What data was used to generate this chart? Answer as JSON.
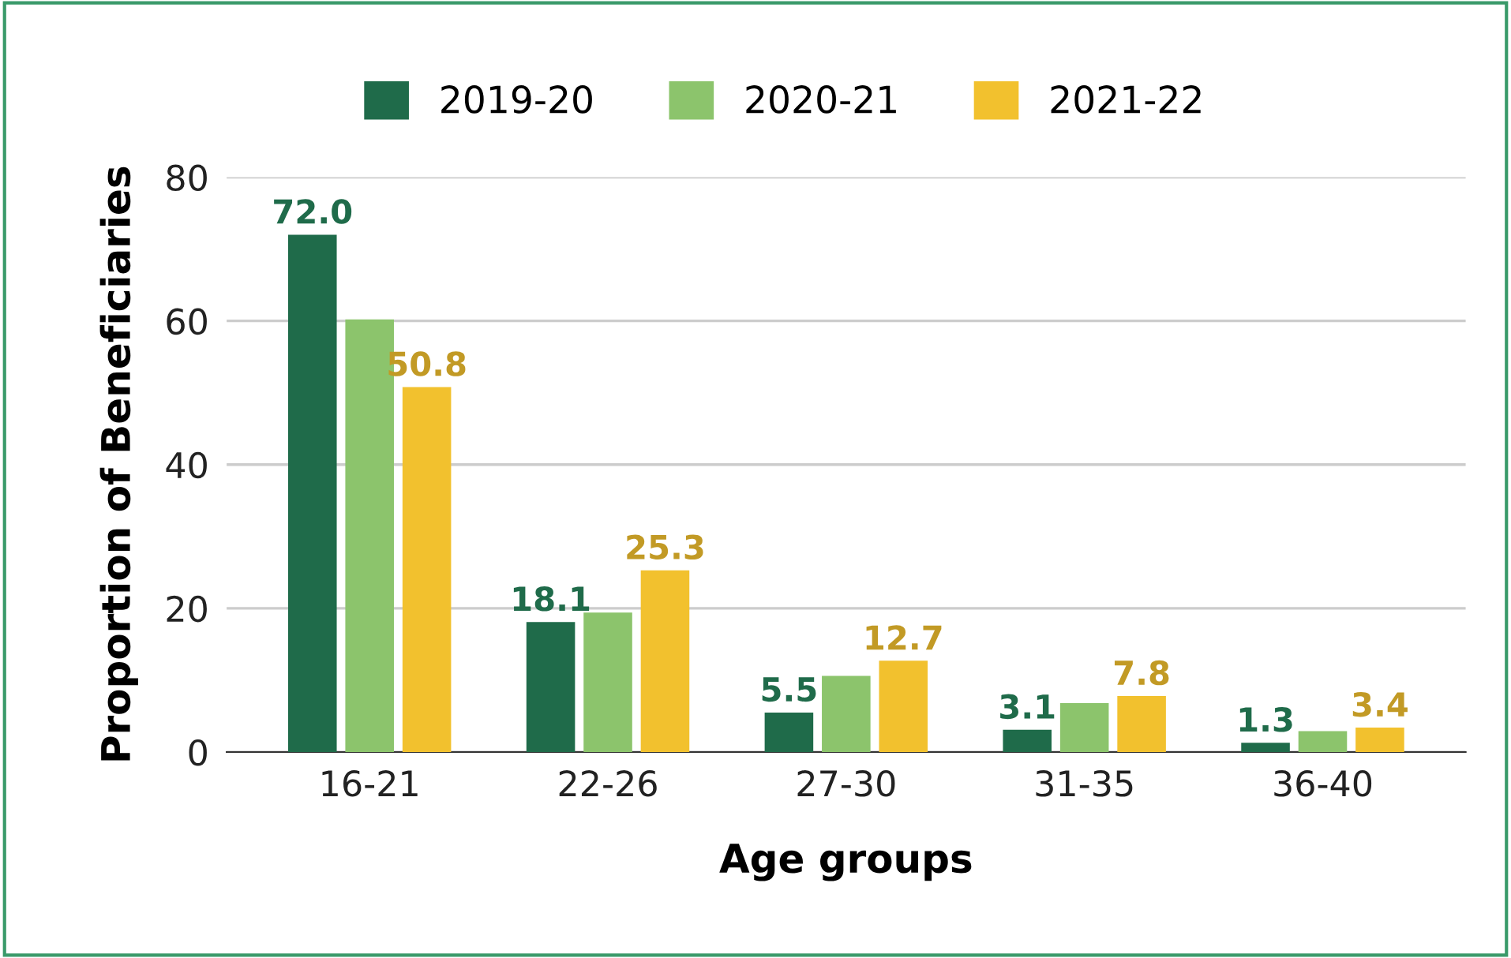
{
  "chart_data": {
    "type": "bar",
    "xlabel": "Age groups",
    "ylabel": "Proportion of Beneficiaries",
    "categories": [
      "16-21",
      "22-26",
      "27-30",
      "31-35",
      "36-40"
    ],
    "series": [
      {
        "name": "2019-20",
        "color": "#1f6b4a",
        "values": [
          72.0,
          18.1,
          5.5,
          3.1,
          1.3
        ],
        "value_labels": [
          "72.0",
          "18.1",
          "5.5",
          "3.1",
          "1.3"
        ]
      },
      {
        "name": "2020-21",
        "color": "#8cc46c",
        "values": [
          60.2,
          19.4,
          10.6,
          6.8,
          2.9
        ]
      },
      {
        "name": "2021-22",
        "color": "#f2c12e",
        "values": [
          50.8,
          25.3,
          12.7,
          7.8,
          3.4
        ],
        "value_labels": [
          "50.8",
          "25.3",
          "12.7",
          "7.8",
          "3.4"
        ]
      }
    ],
    "ylim": [
      0,
      80
    ],
    "yticks": [
      0,
      20,
      40,
      60,
      80
    ],
    "grid": "y",
    "legend": "top"
  }
}
